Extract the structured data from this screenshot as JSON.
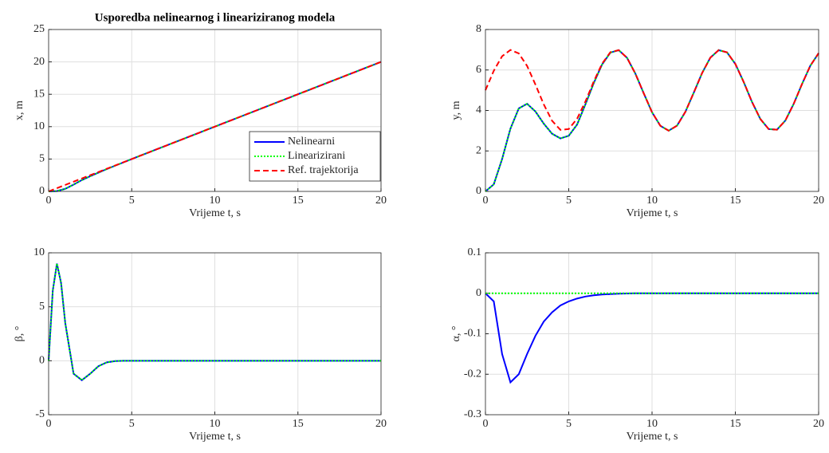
{
  "chart_data": [
    {
      "type": "line",
      "title": "Usporedba nelinearnog i lineariziranog modela",
      "xlabel": "Vrijeme t, s",
      "ylabel": "x, m",
      "x": [
        0,
        0.5,
        1,
        1.5,
        2,
        2.5,
        3,
        3.5,
        4,
        4.5,
        5,
        5.5,
        6,
        6.5,
        7,
        7.5,
        8,
        8.5,
        9,
        9.5,
        10,
        10.5,
        11,
        11.5,
        12,
        12.5,
        13,
        13.5,
        14,
        14.5,
        15,
        15.5,
        16,
        16.5,
        17,
        17.5,
        18,
        18.5,
        19,
        19.5,
        20
      ],
      "series": [
        {
          "name": "Nelinearni",
          "color": "#0000ff",
          "style": "solid",
          "values": [
            0,
            0.05,
            0.4,
            1.05,
            1.75,
            2.35,
            2.9,
            3.45,
            3.97,
            4.48,
            5,
            5.5,
            6,
            6.5,
            7,
            7.5,
            8,
            8.5,
            9,
            9.5,
            10,
            10.5,
            11,
            11.5,
            12,
            12.5,
            13,
            13.5,
            14,
            14.5,
            15,
            15.5,
            16,
            16.5,
            17,
            17.5,
            18,
            18.5,
            19,
            19.5,
            20
          ]
        },
        {
          "name": "Linearizirani",
          "color": "#00ff00",
          "style": "dotted",
          "values": [
            0,
            0.05,
            0.4,
            1.05,
            1.75,
            2.35,
            2.9,
            3.45,
            3.97,
            4.48,
            5,
            5.5,
            6,
            6.5,
            7,
            7.5,
            8,
            8.5,
            9,
            9.5,
            10,
            10.5,
            11,
            11.5,
            12,
            12.5,
            13,
            13.5,
            14,
            14.5,
            15,
            15.5,
            16,
            16.5,
            17,
            17.5,
            18,
            18.5,
            19,
            19.5,
            20
          ]
        },
        {
          "name": "Ref. trajektorija",
          "color": "#ff0000",
          "style": "dashed",
          "values": [
            0,
            0.5,
            1,
            1.5,
            2,
            2.5,
            3,
            3.5,
            4,
            4.5,
            5,
            5.5,
            6,
            6.5,
            7,
            7.5,
            8,
            8.5,
            9,
            9.5,
            10,
            10.5,
            11,
            11.5,
            12,
            12.5,
            13,
            13.5,
            14,
            14.5,
            15,
            15.5,
            16,
            16.5,
            17,
            17.5,
            18,
            18.5,
            19,
            19.5,
            20
          ]
        }
      ],
      "xlim": [
        0,
        20
      ],
      "xticks": [
        0,
        5,
        10,
        15,
        20
      ],
      "ylim": [
        0,
        25
      ],
      "yticks": [
        0,
        5,
        10,
        15,
        20,
        25
      ],
      "grid": true,
      "legend": "southeast"
    },
    {
      "type": "line",
      "xlabel": "Vrijeme t, s",
      "ylabel": "y, m",
      "x": [
        0,
        0.5,
        1,
        1.5,
        2,
        2.5,
        3,
        3.5,
        4,
        4.5,
        5,
        5.5,
        6,
        6.5,
        7,
        7.5,
        8,
        8.5,
        9,
        9.5,
        10,
        10.5,
        11,
        11.5,
        12,
        12.5,
        13,
        13.5,
        14,
        14.5,
        15,
        15.5,
        16,
        16.5,
        17,
        17.5,
        18,
        18.5,
        19,
        19.5,
        20
      ],
      "series": [
        {
          "color": "#0000ff",
          "style": "solid",
          "values": [
            0,
            0.35,
            1.6,
            3.1,
            4.1,
            4.33,
            3.95,
            3.35,
            2.85,
            2.62,
            2.75,
            3.3,
            4.3,
            5.35,
            6.27,
            6.86,
            6.98,
            6.6,
            5.82,
            4.85,
            3.91,
            3.24,
            3.0,
            3.25,
            3.93,
            4.87,
            5.84,
            6.61,
            6.98,
            6.87,
            6.3,
            5.41,
            4.42,
            3.58,
            3.08,
            3.05,
            3.5,
            4.32,
            5.3,
            6.21,
            6.83
          ]
        },
        {
          "color": "#00ff00",
          "style": "dotted",
          "values": [
            0,
            0.35,
            1.6,
            3.1,
            4.1,
            4.33,
            3.95,
            3.35,
            2.85,
            2.62,
            2.75,
            3.3,
            4.3,
            5.35,
            6.27,
            6.86,
            6.98,
            6.6,
            5.82,
            4.85,
            3.91,
            3.24,
            3.0,
            3.25,
            3.93,
            4.87,
            5.84,
            6.61,
            6.98,
            6.87,
            6.3,
            5.41,
            4.42,
            3.58,
            3.08,
            3.05,
            3.5,
            4.32,
            5.3,
            6.21,
            6.83
          ]
        },
        {
          "color": "#ff0000",
          "style": "dashed",
          "values": [
            5,
            5.96,
            6.68,
            6.99,
            6.82,
            6.2,
            5.28,
            4.3,
            3.49,
            3.04,
            3.08,
            3.59,
            4.44,
            5.43,
            6.31,
            6.88,
            6.98,
            6.6,
            5.82,
            4.85,
            3.91,
            3.24,
            3.0,
            3.25,
            3.93,
            4.87,
            5.84,
            6.61,
            6.98,
            6.87,
            6.3,
            5.41,
            4.42,
            3.58,
            3.08,
            3.05,
            3.5,
            4.32,
            5.3,
            6.21,
            6.83
          ]
        }
      ],
      "xlim": [
        0,
        20
      ],
      "xticks": [
        0,
        5,
        10,
        15,
        20
      ],
      "ylim": [
        0,
        8
      ],
      "yticks": [
        0,
        2,
        4,
        6,
        8
      ],
      "grid": true
    },
    {
      "type": "line",
      "xlabel": "Vrijeme t, s",
      "ylabel": "β, °",
      "x": [
        0,
        0.25,
        0.5,
        0.75,
        1,
        1.5,
        2,
        2.5,
        3,
        3.5,
        4,
        4.5,
        5,
        6,
        7,
        8,
        9,
        10,
        11,
        12,
        13,
        14,
        15,
        16,
        17,
        18,
        19,
        20
      ],
      "series": [
        {
          "color": "#0000ff",
          "style": "solid",
          "values": [
            0,
            6.5,
            9.0,
            7.2,
            3.5,
            -1.2,
            -1.8,
            -1.2,
            -0.5,
            -0.15,
            -0.03,
            0,
            0,
            0,
            0,
            0,
            0,
            0,
            0,
            0,
            0,
            0,
            0,
            0,
            0,
            0,
            0,
            0
          ]
        },
        {
          "color": "#00ff00",
          "style": "dotted",
          "values": [
            0,
            6.5,
            9.0,
            7.2,
            3.5,
            -1.2,
            -1.8,
            -1.2,
            -0.5,
            -0.15,
            -0.03,
            0,
            0,
            0,
            0,
            0,
            0,
            0,
            0,
            0,
            0,
            0,
            0,
            0,
            0,
            0,
            0,
            0
          ]
        }
      ],
      "xlim": [
        0,
        20
      ],
      "xticks": [
        0,
        5,
        10,
        15,
        20
      ],
      "ylim": [
        -5,
        10
      ],
      "yticks": [
        -5,
        0,
        5,
        10
      ],
      "grid": true
    },
    {
      "type": "line",
      "xlabel": "Vrijeme t, s",
      "ylabel": "α, °",
      "x": [
        0,
        0.5,
        1,
        1.5,
        2,
        2.5,
        3,
        3.5,
        4,
        4.5,
        5,
        5.5,
        6,
        6.5,
        7,
        7.5,
        8,
        9,
        10,
        12,
        14,
        16,
        18,
        20
      ],
      "series": [
        {
          "color": "#0000ff",
          "style": "solid",
          "values": [
            0,
            -0.02,
            -0.15,
            -0.22,
            -0.2,
            -0.15,
            -0.105,
            -0.07,
            -0.047,
            -0.03,
            -0.02,
            -0.013,
            -0.008,
            -0.005,
            -0.003,
            -0.002,
            -0.001,
            0,
            0,
            0,
            0,
            0,
            0,
            0
          ]
        },
        {
          "color": "#00ff00",
          "style": "dotted",
          "values": [
            0,
            0,
            0,
            0,
            0,
            0,
            0,
            0,
            0,
            0,
            0,
            0,
            0,
            0,
            0,
            0,
            0,
            0,
            0,
            0,
            0,
            0,
            0,
            0
          ]
        }
      ],
      "xlim": [
        0,
        20
      ],
      "xticks": [
        0,
        5,
        10,
        15,
        20
      ],
      "ylim": [
        -0.3,
        0.1
      ],
      "yticks": [
        -0.3,
        -0.2,
        -0.1,
        0,
        0.1
      ],
      "grid": true
    }
  ]
}
